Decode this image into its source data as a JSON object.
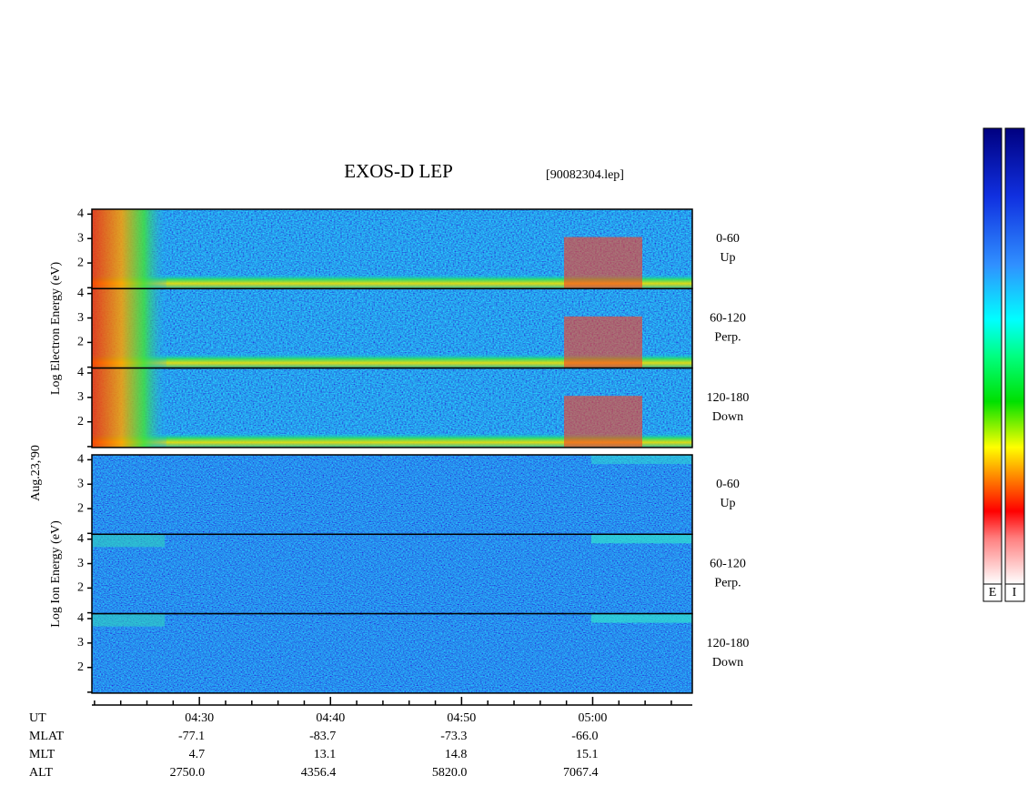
{
  "chart_data": {
    "type": "spectrogram",
    "title": "EXOS-D LEP",
    "subtitle": "[90082304.lep]",
    "date": "Aug.23,'90",
    "xlim": [
      261.8,
      307.6
    ],
    "xticks": [
      {
        "value": 270,
        "label": "04:30"
      },
      {
        "value": 280,
        "label": "04:40"
      },
      {
        "value": 290,
        "label": "04:50"
      },
      {
        "value": 300,
        "label": "05:00"
      }
    ],
    "xminor": [
      262,
      264,
      266,
      268,
      272,
      274,
      276,
      278,
      282,
      284,
      286,
      288,
      292,
      294,
      296,
      298,
      302,
      304,
      306
    ],
    "ylim": [
      0.95,
      4.2
    ],
    "yticks": [
      2,
      3,
      4
    ],
    "groups": [
      {
        "axis_label": "Log  Electron  Energy (eV)",
        "panels": [
          {
            "angle": "0-60",
            "direction": "Up"
          },
          {
            "angle": "60-120",
            "direction": "Perp."
          },
          {
            "angle": "120-180",
            "direction": "Down"
          }
        ]
      },
      {
        "axis_label": "Log   Ion   Energy (eV)",
        "panels": [
          {
            "angle": "0-60",
            "direction": "Up"
          },
          {
            "angle": "60-120",
            "direction": "Perp."
          },
          {
            "angle": "120-180",
            "direction": "Down"
          }
        ]
      }
    ],
    "colorbar_labels": [
      "E",
      "I"
    ],
    "orbit": {
      "labels": [
        "UT",
        "MLAT",
        "MLT",
        "ALT"
      ],
      "rows": [
        [
          "-77.1",
          "-83.7",
          "-73.3",
          "-66.0"
        ],
        [
          "4.7",
          "13.1",
          "14.8",
          "15.1"
        ],
        [
          "2750.0",
          "4356.4",
          "5820.0",
          "7067.4"
        ]
      ]
    }
  }
}
